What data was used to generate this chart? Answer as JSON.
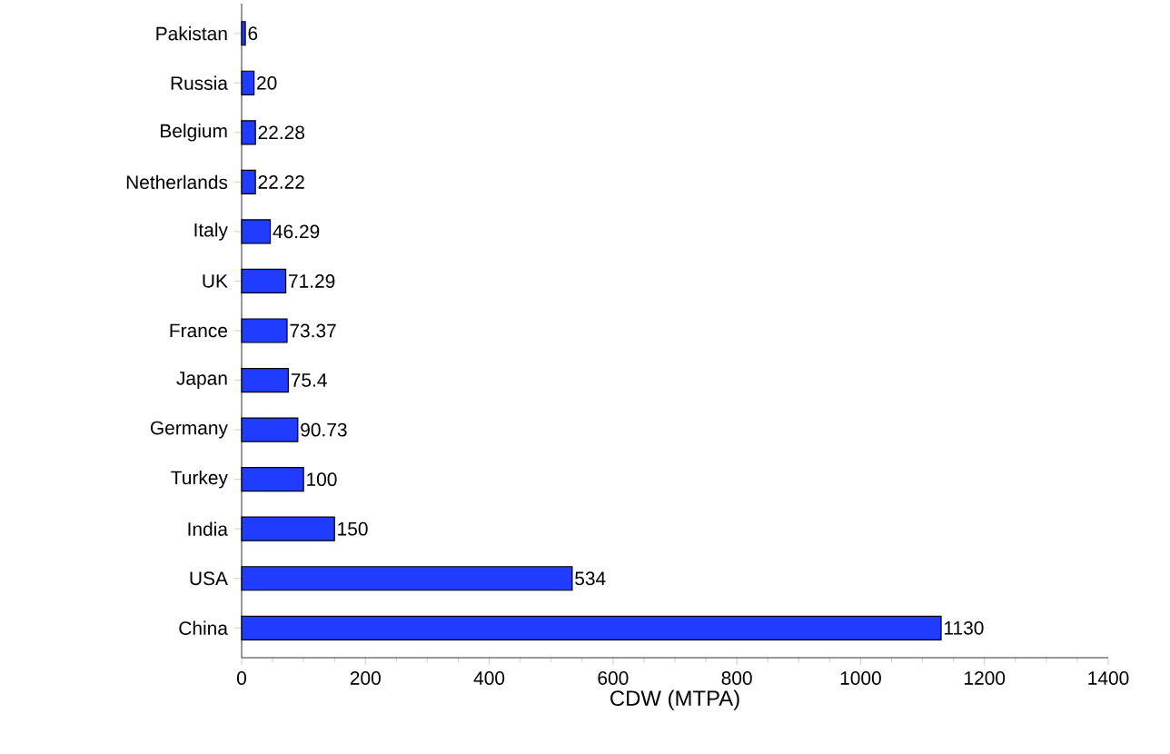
{
  "chart_data": {
    "type": "bar",
    "orientation": "horizontal",
    "xlabel": "CDW (MTPA)",
    "categories": [
      "Pakistan",
      "Russia",
      "Belgium",
      "Netherlands",
      "Italy",
      "UK",
      "France",
      "Japan",
      "Germany",
      "Turkey",
      "India",
      "USA",
      "China"
    ],
    "values": [
      6,
      20,
      22.28,
      22.22,
      46.29,
      71.29,
      73.37,
      75.4,
      90.73,
      100,
      150,
      534,
      1130
    ],
    "color": "#1f3cff",
    "data_labels": true,
    "xlim": [
      0,
      1400
    ],
    "xticks": [
      0,
      200,
      400,
      600,
      800,
      1000,
      1200,
      1400
    ]
  }
}
